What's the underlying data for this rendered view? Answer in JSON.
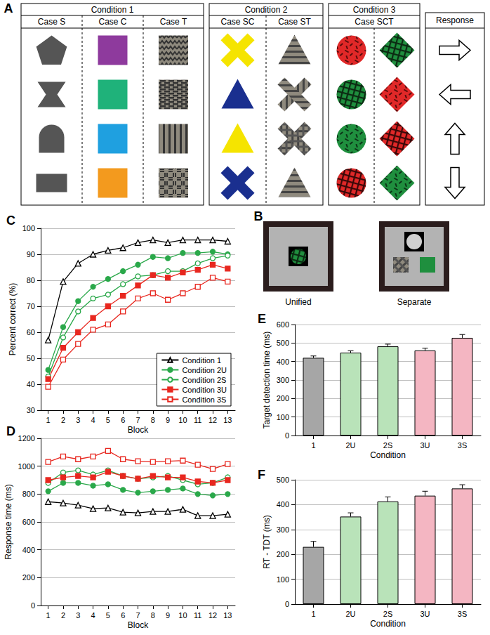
{
  "panel_a": {
    "label": "A",
    "conditions": [
      {
        "title": "Condition 1",
        "cases": [
          "Case S",
          "Case C",
          "Case T"
        ]
      },
      {
        "title": "Condition 2",
        "cases": [
          "Case SC",
          "Case ST"
        ]
      },
      {
        "title": "Condition 3",
        "cases": [
          "Case SCT"
        ]
      }
    ],
    "response_header": "Response"
  },
  "panel_b": {
    "label": "B",
    "screens": [
      "Unified",
      "Separate"
    ]
  },
  "chart_data": [
    {
      "title": "C",
      "type": "line",
      "categories": [
        "1",
        "2",
        "3",
        "4",
        "5",
        "6",
        "7",
        "8",
        "9",
        "10",
        "11",
        "12",
        "13"
      ],
      "x_label": "Block",
      "y_label": "Percent correct (%)",
      "ylim": [
        30,
        100
      ],
      "yticks": [
        30,
        40,
        50,
        60,
        70,
        80,
        90,
        100
      ],
      "grid": true,
      "legend": "lower right",
      "series": [
        {
          "name": "Condition 1",
          "color": "#000000",
          "marker": "triangle-open",
          "values": [
            57,
            79.5,
            86.5,
            90,
            91.5,
            92.5,
            94.5,
            95.5,
            94.5,
            95.5,
            95.5,
            95.5,
            95
          ]
        },
        {
          "name": "Condition 2U",
          "color": "#2aa84a",
          "marker": "circle",
          "values": [
            45.5,
            62,
            72,
            77.5,
            80.5,
            83.5,
            86,
            89,
            88.5,
            90.5,
            90.5,
            91,
            90
          ]
        },
        {
          "name": "Condition 2S",
          "color": "#2aa84a",
          "marker": "circle-open",
          "values": [
            43,
            58,
            68,
            73,
            74.5,
            78.5,
            81.5,
            82,
            83.5,
            83.5,
            86.5,
            88.5,
            89.5
          ]
        },
        {
          "name": "Condition 3U",
          "color": "#e8271f",
          "marker": "square",
          "values": [
            42,
            54,
            60,
            65.5,
            70,
            74,
            78,
            82,
            81,
            83,
            84,
            86,
            84.5
          ]
        },
        {
          "name": "Condition 3S",
          "color": "#e8271f",
          "marker": "square-open",
          "values": [
            39,
            49.5,
            55.5,
            61,
            63,
            68,
            73,
            75,
            72.5,
            75,
            77.5,
            81,
            79.5
          ]
        }
      ]
    },
    {
      "title": "D",
      "type": "line",
      "categories": [
        "1",
        "2",
        "3",
        "4",
        "5",
        "6",
        "7",
        "8",
        "9",
        "10",
        "11",
        "12",
        "13"
      ],
      "x_label": "Block",
      "y_label": "Response time (ms)",
      "ylim": [
        0,
        1200
      ],
      "yticks": [
        0,
        200,
        400,
        600,
        800,
        1000,
        1200
      ],
      "grid": true,
      "series": [
        {
          "name": "Condition 1",
          "color": "#000000",
          "marker": "triangle-open",
          "values": [
            745,
            735,
            720,
            695,
            700,
            670,
            665,
            675,
            675,
            690,
            645,
            645,
            655
          ]
        },
        {
          "name": "Condition 2U",
          "color": "#2aa84a",
          "marker": "circle",
          "values": [
            820,
            880,
            880,
            860,
            870,
            830,
            810,
            820,
            830,
            840,
            800,
            790,
            800
          ]
        },
        {
          "name": "Condition 2S",
          "color": "#2aa84a",
          "marker": "circle-open",
          "values": [
            880,
            955,
            970,
            940,
            970,
            930,
            910,
            920,
            930,
            900,
            870,
            880,
            920
          ]
        },
        {
          "name": "Condition 3U",
          "color": "#e8271f",
          "marker": "square",
          "values": [
            900,
            920,
            930,
            920,
            960,
            930,
            910,
            930,
            920,
            920,
            890,
            880,
            900
          ]
        },
        {
          "name": "Condition 3S",
          "color": "#e8271f",
          "marker": "square-open",
          "values": [
            1030,
            1070,
            1050,
            1070,
            1110,
            1050,
            1035,
            1030,
            1035,
            1040,
            1010,
            980,
            1015
          ]
        }
      ]
    },
    {
      "title": "E",
      "type": "bar",
      "categories": [
        "1",
        "2U",
        "2S",
        "3U",
        "3S"
      ],
      "values": [
        420,
        448,
        482,
        460,
        528
      ],
      "errors": [
        10,
        10,
        12,
        12,
        18
      ],
      "colors": [
        "#a6a6a6",
        "#b9e3b9",
        "#b9e3b9",
        "#f4b6c2",
        "#f4b6c2"
      ],
      "x_label": "Condition",
      "y_label": "Target detection time (ms)",
      "ylim": [
        0,
        600
      ],
      "yticks": [
        0,
        100,
        200,
        300,
        400,
        500,
        600
      ],
      "grid": true
    },
    {
      "title": "F",
      "type": "bar",
      "categories": [
        "1",
        "2U",
        "2S",
        "3U",
        "3S"
      ],
      "values": [
        230,
        352,
        413,
        436,
        465
      ],
      "errors": [
        22,
        15,
        18,
        18,
        15
      ],
      "colors": [
        "#a6a6a6",
        "#b9e3b9",
        "#b9e3b9",
        "#f4b6c2",
        "#f4b6c2"
      ],
      "x_label": "Condition",
      "y_label": "RT - TDT (ms)",
      "ylim": [
        0,
        500
      ],
      "yticks": [
        0,
        100,
        200,
        300,
        400,
        500
      ],
      "grid": true
    }
  ]
}
